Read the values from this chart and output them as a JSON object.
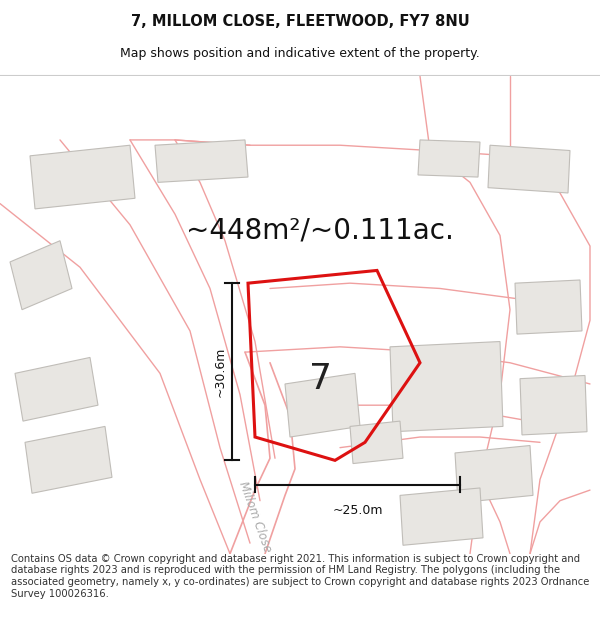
{
  "title": "7, MILLOM CLOSE, FLEETWOOD, FY7 8NU",
  "subtitle": "Map shows position and indicative extent of the property.",
  "area_text": "~448m²/~0.111ac.",
  "label_7": "7",
  "dim_width": "~25.0m",
  "dim_height": "~30.6m",
  "footer": "Contains OS data © Crown copyright and database right 2021. This information is subject to Crown copyright and database rights 2023 and is reproduced with the permission of HM Land Registry. The polygons (including the associated geometry, namely x, y co-ordinates) are subject to Crown copyright and database rights 2023 Ordnance Survey 100026316.",
  "map_bg": "#ffffff",
  "building_color": "#e8e6e2",
  "building_edge": "#c0bdb8",
  "plot_edge": "#dd1111",
  "road_line_color": "#f0a0a0",
  "road_fill_color": "#faf0f0",
  "dim_line_color": "#111111",
  "road_label_color": "#aaaaaa",
  "title_color": "#111111",
  "footer_color": "#333333",
  "footer_size": 7.2,
  "title_size": 10.5,
  "subtitle_size": 9.0,
  "area_text_size": 20
}
